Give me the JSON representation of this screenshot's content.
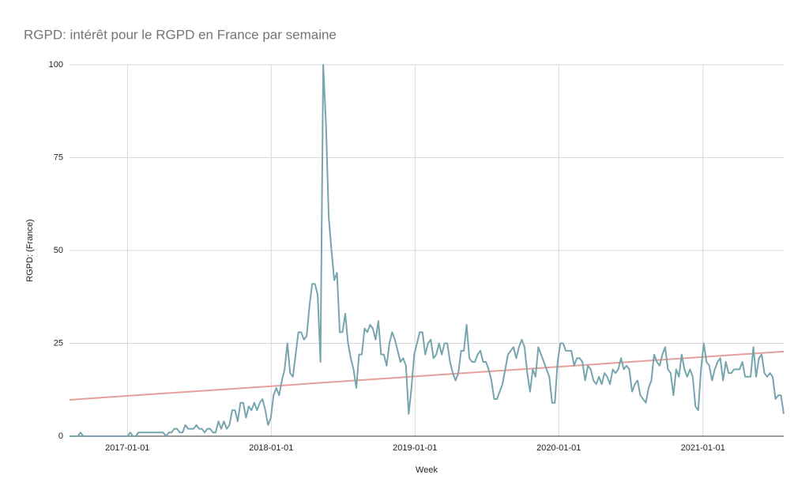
{
  "chart_data": {
    "type": "line",
    "title": "RGPD: intérêt pour le RGPD en France par semaine",
    "x_label": "Week",
    "y_label": "RGPD: (France)",
    "color": "#76a5af",
    "grid": true,
    "x": [
      "2016-08-07",
      "2016-08-14",
      "2016-08-21",
      "2016-08-28",
      "2016-09-04",
      "2016-09-11",
      "2016-09-18",
      "2016-09-25",
      "2016-10-02",
      "2016-10-09",
      "2016-10-16",
      "2016-10-23",
      "2016-10-30",
      "2016-11-06",
      "2016-11-13",
      "2016-11-20",
      "2016-11-27",
      "2016-12-04",
      "2016-12-11",
      "2016-12-18",
      "2016-12-25",
      "2017-01-01",
      "2017-01-08",
      "2017-01-15",
      "2017-01-22",
      "2017-01-29",
      "2017-02-05",
      "2017-02-12",
      "2017-02-19",
      "2017-02-26",
      "2017-03-05",
      "2017-03-12",
      "2017-03-19",
      "2017-03-26",
      "2017-04-02",
      "2017-04-09",
      "2017-04-16",
      "2017-04-23",
      "2017-04-30",
      "2017-05-07",
      "2017-05-14",
      "2017-05-21",
      "2017-05-28",
      "2017-06-04",
      "2017-06-11",
      "2017-06-18",
      "2017-06-25",
      "2017-07-02",
      "2017-07-09",
      "2017-07-16",
      "2017-07-23",
      "2017-07-30",
      "2017-08-06",
      "2017-08-13",
      "2017-08-20",
      "2017-08-27",
      "2017-09-03",
      "2017-09-10",
      "2017-09-17",
      "2017-09-24",
      "2017-10-01",
      "2017-10-08",
      "2017-10-15",
      "2017-10-22",
      "2017-10-29",
      "2017-11-05",
      "2017-11-12",
      "2017-11-19",
      "2017-11-26",
      "2017-12-03",
      "2017-12-10",
      "2017-12-17",
      "2017-12-24",
      "2017-12-31",
      "2018-01-07",
      "2018-01-14",
      "2018-01-21",
      "2018-01-28",
      "2018-02-04",
      "2018-02-11",
      "2018-02-18",
      "2018-02-25",
      "2018-03-04",
      "2018-03-11",
      "2018-03-18",
      "2018-03-25",
      "2018-04-01",
      "2018-04-08",
      "2018-04-15",
      "2018-04-22",
      "2018-04-29",
      "2018-05-06",
      "2018-05-13",
      "2018-05-20",
      "2018-05-27",
      "2018-06-03",
      "2018-06-10",
      "2018-06-17",
      "2018-06-24",
      "2018-07-01",
      "2018-07-08",
      "2018-07-15",
      "2018-07-22",
      "2018-07-29",
      "2018-08-05",
      "2018-08-12",
      "2018-08-19",
      "2018-08-26",
      "2018-09-02",
      "2018-09-09",
      "2018-09-16",
      "2018-09-23",
      "2018-09-30",
      "2018-10-07",
      "2018-10-14",
      "2018-10-21",
      "2018-10-28",
      "2018-11-04",
      "2018-11-11",
      "2018-11-18",
      "2018-11-25",
      "2018-12-02",
      "2018-12-09",
      "2018-12-16",
      "2018-12-23",
      "2018-12-30",
      "2019-01-06",
      "2019-01-13",
      "2019-01-20",
      "2019-01-27",
      "2019-02-03",
      "2019-02-10",
      "2019-02-17",
      "2019-02-24",
      "2019-03-03",
      "2019-03-10",
      "2019-03-17",
      "2019-03-24",
      "2019-03-31",
      "2019-04-07",
      "2019-04-14",
      "2019-04-21",
      "2019-04-28",
      "2019-05-05",
      "2019-05-12",
      "2019-05-19",
      "2019-05-26",
      "2019-06-02",
      "2019-06-09",
      "2019-06-16",
      "2019-06-23",
      "2019-06-30",
      "2019-07-07",
      "2019-07-14",
      "2019-07-21",
      "2019-07-28",
      "2019-08-04",
      "2019-08-11",
      "2019-08-18",
      "2019-08-25",
      "2019-09-01",
      "2019-09-08",
      "2019-09-15",
      "2019-09-22",
      "2019-09-29",
      "2019-10-06",
      "2019-10-13",
      "2019-10-20",
      "2019-10-27",
      "2019-11-03",
      "2019-11-10",
      "2019-11-17",
      "2019-11-24",
      "2019-12-01",
      "2019-12-08",
      "2019-12-15",
      "2019-12-22",
      "2019-12-29",
      "2020-01-05",
      "2020-01-12",
      "2020-01-19",
      "2020-01-26",
      "2020-02-02",
      "2020-02-09",
      "2020-02-16",
      "2020-02-23",
      "2020-03-01",
      "2020-03-08",
      "2020-03-15",
      "2020-03-22",
      "2020-03-29",
      "2020-04-05",
      "2020-04-12",
      "2020-04-19",
      "2020-04-26",
      "2020-05-03",
      "2020-05-10",
      "2020-05-17",
      "2020-05-24",
      "2020-05-31",
      "2020-06-07",
      "2020-06-14",
      "2020-06-21",
      "2020-06-28",
      "2020-07-05",
      "2020-07-12",
      "2020-07-19",
      "2020-07-26",
      "2020-08-02",
      "2020-08-09",
      "2020-08-16",
      "2020-08-23",
      "2020-08-30",
      "2020-09-06",
      "2020-09-13",
      "2020-09-20",
      "2020-09-27",
      "2020-10-04",
      "2020-10-11",
      "2020-10-18",
      "2020-10-25",
      "2020-11-01",
      "2020-11-08",
      "2020-11-15",
      "2020-11-22",
      "2020-11-29",
      "2020-12-06",
      "2020-12-13",
      "2020-12-20",
      "2020-12-27",
      "2021-01-03",
      "2021-01-10",
      "2021-01-17",
      "2021-01-24",
      "2021-01-31",
      "2021-02-07",
      "2021-02-14",
      "2021-02-21",
      "2021-02-28",
      "2021-03-07",
      "2021-03-14",
      "2021-03-21",
      "2021-03-28",
      "2021-04-04",
      "2021-04-11",
      "2021-04-18",
      "2021-04-25",
      "2021-05-02",
      "2021-05-09",
      "2021-05-16",
      "2021-05-23",
      "2021-05-30",
      "2021-06-06",
      "2021-06-13",
      "2021-06-20",
      "2021-06-27",
      "2021-07-04",
      "2021-07-11",
      "2021-07-18",
      "2021-07-25"
    ],
    "values": [
      0,
      0,
      0,
      0,
      1,
      0,
      0,
      0,
      0,
      0,
      0,
      0,
      0,
      0,
      0,
      0,
      0,
      0,
      0,
      0,
      0,
      0,
      1,
      0,
      0,
      1,
      1,
      1,
      1,
      1,
      1,
      1,
      1,
      1,
      1,
      0,
      1,
      1,
      2,
      2,
      1,
      1,
      3,
      2,
      2,
      2,
      3,
      2,
      2,
      1,
      2,
      2,
      1,
      1,
      4,
      2,
      4,
      2,
      3,
      7,
      7,
      4,
      9,
      9,
      5,
      8,
      7,
      9,
      7,
      9,
      10,
      7,
      3,
      5,
      11,
      13,
      11,
      15,
      18,
      25,
      17,
      16,
      22,
      28,
      28,
      26,
      27,
      35,
      41,
      41,
      38,
      20,
      100,
      84,
      59,
      50,
      42,
      44,
      28,
      28,
      33,
      25,
      21,
      18,
      13,
      22,
      22,
      29,
      28,
      30,
      29,
      26,
      31,
      22,
      22,
      19,
      25,
      28,
      26,
      23,
      20,
      21,
      19,
      6,
      13,
      22,
      25,
      28,
      28,
      22,
      25,
      26,
      21,
      22,
      25,
      22,
      25,
      25,
      20,
      17,
      15,
      17,
      23,
      23,
      30,
      21,
      20,
      20,
      22,
      23,
      20,
      20,
      18,
      15,
      10,
      10,
      12,
      14,
      18,
      22,
      23,
      24,
      21,
      24,
      26,
      24,
      17,
      12,
      18,
      16,
      24,
      22,
      20,
      18,
      16,
      9,
      9,
      20,
      25,
      25,
      23,
      23,
      23,
      19,
      21,
      21,
      20,
      15,
      19,
      18,
      15,
      14,
      16,
      14,
      17,
      16,
      14,
      18,
      17,
      18,
      21,
      18,
      19,
      18,
      12,
      14,
      15,
      11,
      10,
      9,
      13,
      15,
      22,
      20,
      19,
      22,
      24,
      18,
      17,
      11,
      18,
      16,
      22,
      18,
      16,
      18,
      16,
      8,
      7,
      18,
      25,
      20,
      19,
      15,
      18,
      20,
      21,
      15,
      20,
      17,
      17,
      18,
      18,
      18,
      20,
      16,
      16,
      16,
      24,
      16,
      21,
      22,
      17,
      16,
      17,
      16,
      10,
      11,
      11,
      6
    ],
    "trendline": {
      "color": "#e6a09c",
      "values": [
        9.8,
        22.8
      ]
    },
    "xlim": [
      "2016-08-07",
      "2021-07-25"
    ],
    "xticks": [
      "2017-01-01",
      "2018-01-01",
      "2019-01-01",
      "2020-01-01",
      "2021-01-01"
    ],
    "ylim": [
      0,
      100
    ],
    "yticks": [
      0,
      25,
      50,
      75,
      100
    ]
  }
}
